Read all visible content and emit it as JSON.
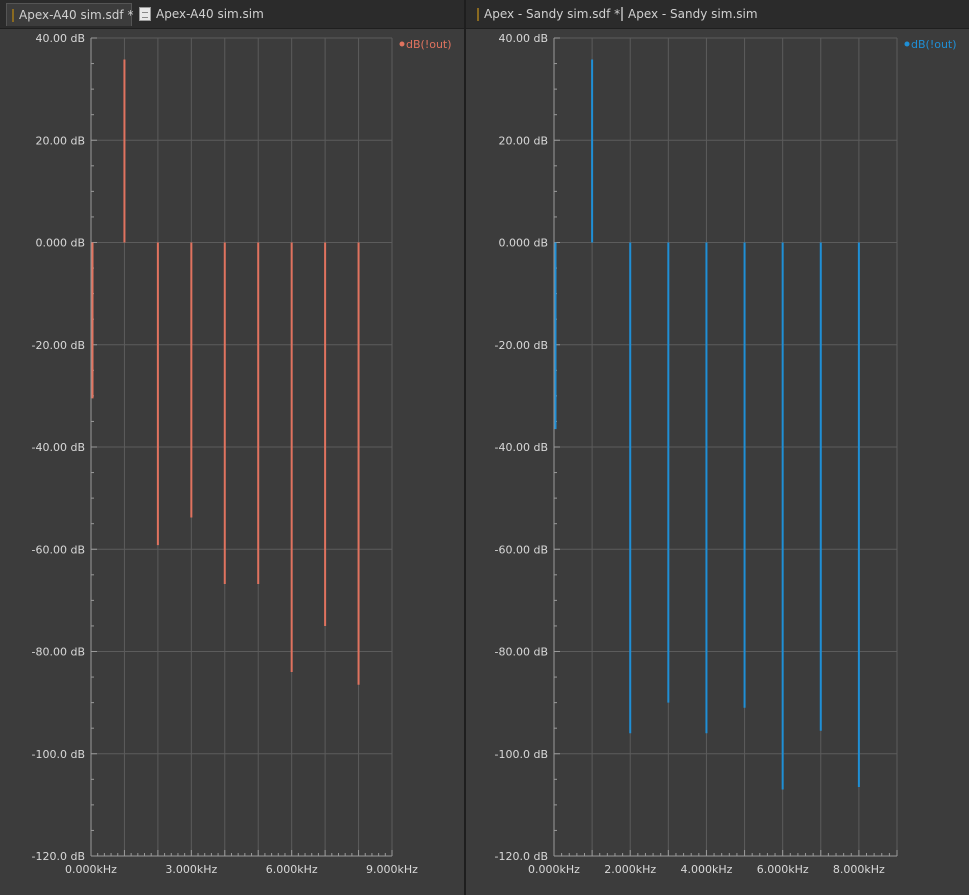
{
  "tabs_left": [
    {
      "label": "Apex-A40 sim.sdf *",
      "icon": "schematic-file-icon",
      "active": true
    },
    {
      "label": "Apex-A40 sim.sim",
      "icon": "document-icon",
      "active": false
    }
  ],
  "tabs_right": [
    {
      "label": "Apex - Sandy sim.sdf *",
      "icon": "schematic-file-icon",
      "active": false
    },
    {
      "label": "Apex - Sandy sim.sim",
      "icon": "document-icon",
      "active": false
    }
  ],
  "chart_data": [
    {
      "type": "bar",
      "title": "",
      "legend": "dB(!out)",
      "legend_position": "top-right",
      "color": "#e0735f",
      "x_unit": "kHz",
      "xlim": [
        0,
        9
      ],
      "ylim": [
        -120,
        40
      ],
      "x_ticks": [
        0,
        3,
        6,
        9
      ],
      "x_tick_labels": [
        "0.000kHz",
        "3.000kHz",
        "6.000kHz",
        "9.000kHz"
      ],
      "y_ticks": [
        40,
        20,
        0,
        -20,
        -40,
        -60,
        -80,
        -100,
        -120
      ],
      "y_tick_labels": [
        "40.00 dB",
        "20.00 dB",
        "0.000 dB",
        "-20.00 dB",
        "-40.00 dB",
        "-60.00 dB",
        "-80.00 dB",
        "-100.0 dB",
        "-120.0 dB"
      ],
      "x_grid": [
        0,
        1,
        2,
        3,
        4,
        5,
        6,
        7,
        8,
        9
      ],
      "grid": true,
      "x": [
        0,
        1,
        2,
        3,
        4,
        5,
        6,
        7,
        8
      ],
      "values": [
        -30.5,
        35.8,
        -59.2,
        -53.8,
        -66.8,
        -66.8,
        -84.0,
        -75.0,
        -86.5
      ]
    },
    {
      "type": "bar",
      "title": "",
      "legend": "dB(!out)",
      "legend_position": "top-right",
      "color": "#1f8fd6",
      "x_unit": "kHz",
      "xlim": [
        0,
        9
      ],
      "ylim": [
        -120,
        40
      ],
      "x_ticks": [
        0,
        2,
        4,
        6,
        8
      ],
      "x_tick_labels": [
        "0.000kHz",
        "2.000kHz",
        "4.000kHz",
        "6.000kHz",
        "8.000kHz"
      ],
      "y_ticks": [
        40,
        20,
        0,
        -20,
        -40,
        -60,
        -80,
        -100,
        -120
      ],
      "y_tick_labels": [
        "40.00 dB",
        "20.00 dB",
        "0.000 dB",
        "-20.00 dB",
        "-40.00 dB",
        "-60.00 dB",
        "-80.00 dB",
        "-100.0 dB",
        "-120.0 dB"
      ],
      "x_grid": [
        0,
        1,
        2,
        3,
        4,
        5,
        6,
        7,
        8,
        9
      ],
      "grid": true,
      "x": [
        0,
        1,
        2,
        3,
        4,
        5,
        6,
        7,
        8
      ],
      "values": [
        -36.5,
        35.8,
        -96.0,
        -90.0,
        -96.0,
        -91.0,
        -107.0,
        -95.5,
        -106.5
      ]
    }
  ]
}
